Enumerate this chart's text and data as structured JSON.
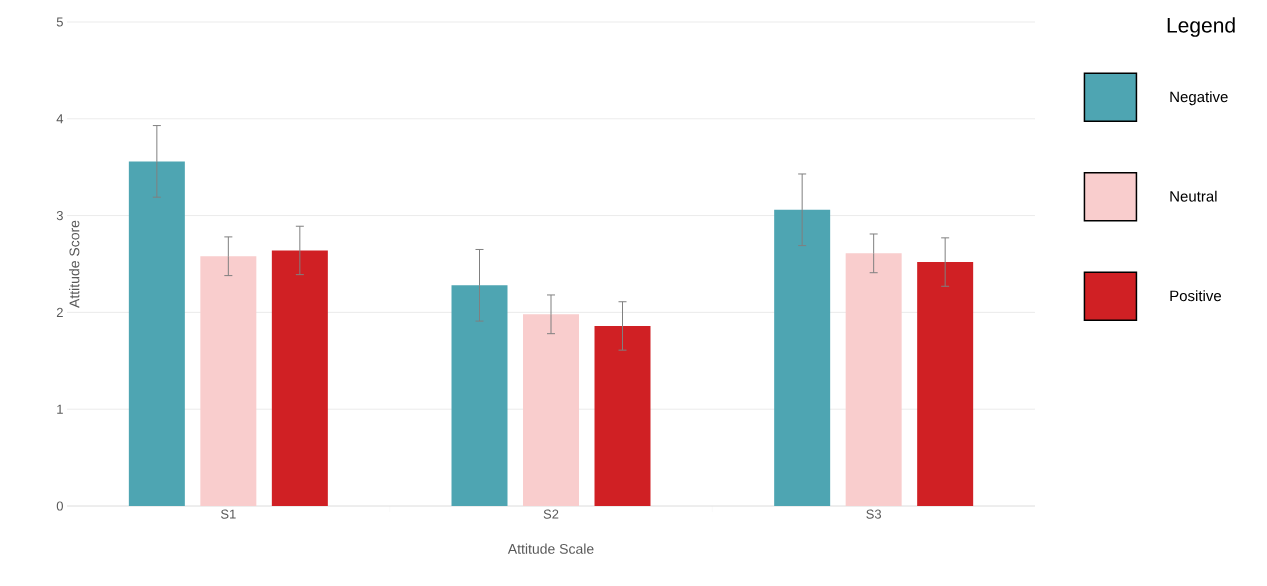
{
  "chart_data": {
    "type": "bar",
    "xlabel": "Attitude Scale",
    "ylabel": "Attitude Score",
    "legend_title": "Legend",
    "categories": [
      "S1",
      "S2",
      "S3"
    ],
    "series": [
      {
        "name": "Negative",
        "color": "#4ea5b2",
        "values": [
          3.56,
          2.28,
          3.06
        ],
        "errors": [
          0.37,
          0.37,
          0.37
        ]
      },
      {
        "name": "Neutral",
        "color": "#f9cdcd",
        "values": [
          2.58,
          1.98,
          2.61
        ],
        "errors": [
          0.2,
          0.2,
          0.2
        ]
      },
      {
        "name": "Positive",
        "color": "#d02024",
        "values": [
          2.64,
          1.86,
          2.52
        ],
        "errors": [
          0.25,
          0.25,
          0.25
        ]
      }
    ],
    "ylim": [
      0,
      5
    ],
    "yticks": [
      0,
      1,
      2,
      3,
      4,
      5
    ],
    "grid": "y",
    "legend": "right"
  }
}
